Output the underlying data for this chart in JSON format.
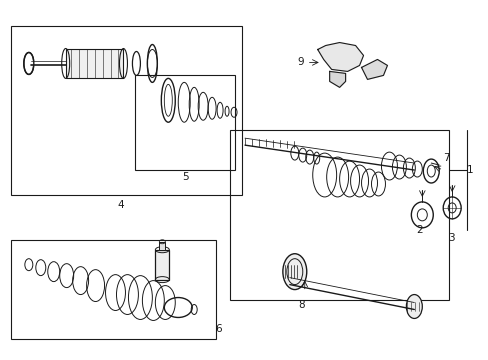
{
  "bg_color": "#ffffff",
  "line_color": "#1a1a1a",
  "fig_width": 4.89,
  "fig_height": 3.6,
  "dpi": 100,
  "label_fontsize": 7.5
}
